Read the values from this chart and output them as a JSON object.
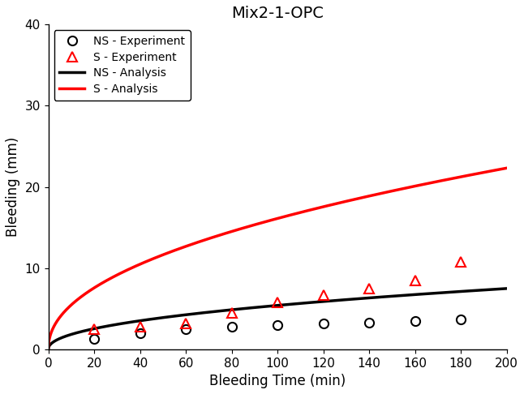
{
  "title": "Mix2-1-OPC",
  "xlabel": "Bleeding Time (min)",
  "ylabel": "Bleeding (mm)",
  "xlim": [
    0,
    200
  ],
  "ylim": [
    0,
    40
  ],
  "xticks": [
    0,
    20,
    40,
    60,
    80,
    100,
    120,
    140,
    160,
    180,
    200
  ],
  "yticks": [
    0,
    10,
    20,
    30,
    40
  ],
  "ns_exp_x": [
    20,
    40,
    60,
    80,
    100,
    120,
    140,
    160,
    180
  ],
  "ns_exp_y": [
    1.3,
    2.0,
    2.5,
    2.8,
    3.0,
    3.2,
    3.3,
    3.5,
    3.7
  ],
  "s_exp_x": [
    20,
    40,
    60,
    80,
    100,
    120,
    140,
    160,
    180
  ],
  "s_exp_y": [
    2.5,
    2.8,
    3.2,
    4.5,
    5.8,
    6.7,
    7.5,
    8.5,
    10.8
  ],
  "ns_analysis_params": {
    "a": 0.62,
    "b": 0.47
  },
  "s_analysis_params": {
    "a": 1.85,
    "b": 0.47
  },
  "ns_exp_color": "#000000",
  "s_exp_color": "#ff0000",
  "ns_analysis_color": "#000000",
  "s_analysis_color": "#ff0000",
  "ns_analysis_lw": 2.5,
  "s_analysis_lw": 2.5,
  "legend_labels": [
    "NS - Experiment",
    "S - Experiment",
    "NS - Analysis",
    "S - Analysis"
  ],
  "background_color": "#ffffff",
  "title_fontsize": 14,
  "label_fontsize": 12,
  "tick_fontsize": 11,
  "legend_fontsize": 10,
  "figwidth": 6.46,
  "figheight": 4.86,
  "dpi": 100
}
